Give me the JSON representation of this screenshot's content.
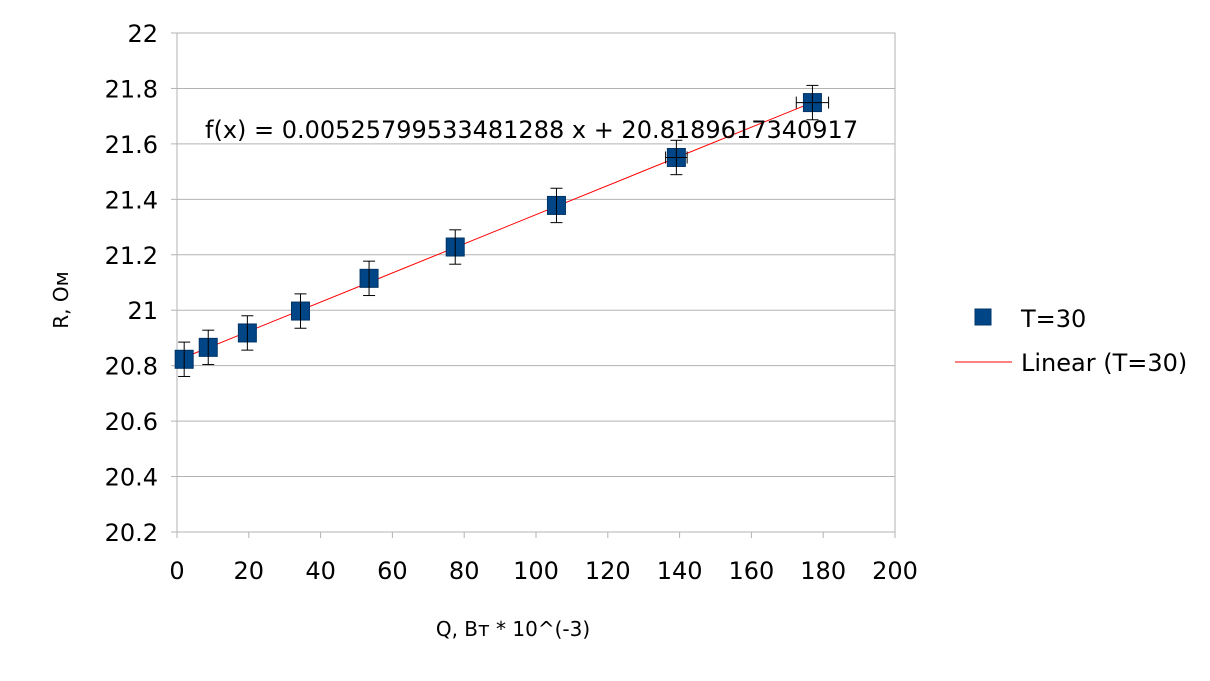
{
  "chart_data": {
    "type": "scatter",
    "title": "",
    "xlabel": "Q, Вт * 10^(-3)",
    "ylabel": "R, Ом",
    "xlim": [
      0,
      200
    ],
    "ylim": [
      20.2,
      22
    ],
    "x_ticks": [
      "0",
      "20",
      "40",
      "60",
      "80",
      "100",
      "120",
      "140",
      "160",
      "180",
      "200"
    ],
    "y_ticks": [
      "20.2",
      "20.4",
      "20.6",
      "20.8",
      "21",
      "21.2",
      "21.4",
      "21.6",
      "21.8",
      "22"
    ],
    "grid": "horizontal",
    "legend_position": "right",
    "series": [
      {
        "name": "T=30",
        "marker": "square",
        "color": "#004586",
        "points": [
          {
            "x": 2,
            "y": 20.823,
            "y_err": 0.062,
            "x_err": 0
          },
          {
            "x": 8.7,
            "y": 20.866,
            "y_err": 0.062,
            "x_err": 0
          },
          {
            "x": 19.6,
            "y": 20.918,
            "y_err": 0.062,
            "x_err": 0
          },
          {
            "x": 34.4,
            "y": 20.997,
            "y_err": 0.062,
            "x_err": 0
          },
          {
            "x": 53.5,
            "y": 21.115,
            "y_err": 0.062,
            "x_err": 0
          },
          {
            "x": 77.5,
            "y": 21.228,
            "y_err": 0.062,
            "x_err": 0
          },
          {
            "x": 105.7,
            "y": 21.378,
            "y_err": 0.062,
            "x_err": 0
          },
          {
            "x": 139.1,
            "y": 21.551,
            "y_err": 0.062,
            "x_err": 3
          },
          {
            "x": 177,
            "y": 21.749,
            "y_err": 0.062,
            "x_err": 4.5
          }
        ]
      }
    ],
    "trendline": {
      "name": "Linear (T=30)",
      "color": "#ff0000",
      "slope": 0.00525799533481288,
      "intercept": 20.8189617340917,
      "x_range": [
        2,
        177
      ],
      "equation": "f(x) = 0.00525799533481288 x + 20.8189617340917"
    }
  }
}
